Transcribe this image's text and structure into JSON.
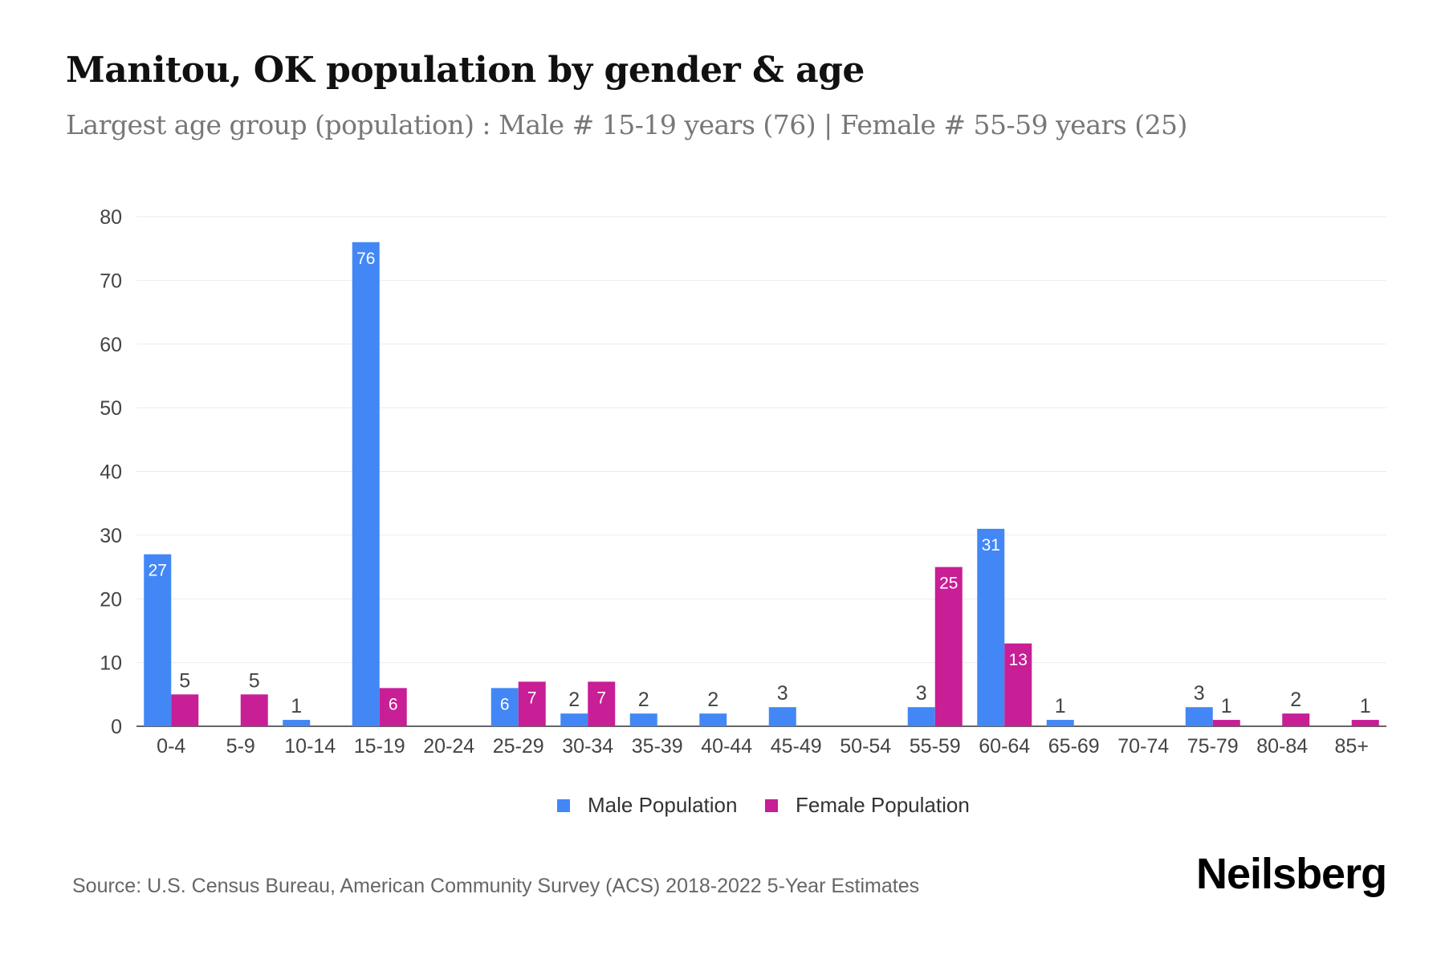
{
  "title": "Manitou, OK population by gender & age",
  "subtitle": "Largest age group (population) : Male # 15-19 years (76) | Female # 55-59 years (25)",
  "source": "Source: U.S. Census Bureau, American Community Survey (ACS) 2018-2022 5-Year Estimates",
  "logo": "Neilsberg",
  "chart_data": {
    "type": "bar",
    "categories": [
      "0-4",
      "5-9",
      "10-14",
      "15-19",
      "20-24",
      "25-29",
      "30-34",
      "35-39",
      "40-44",
      "45-49",
      "50-54",
      "55-59",
      "60-64",
      "65-69",
      "70-74",
      "75-79",
      "80-84",
      "85+"
    ],
    "series": [
      {
        "name": "Male Population",
        "color": "#4287f5",
        "values": [
          27,
          0,
          1,
          76,
          0,
          6,
          2,
          2,
          2,
          3,
          0,
          3,
          31,
          1,
          0,
          3,
          0,
          0
        ]
      },
      {
        "name": "Female Population",
        "color": "#c81e96",
        "values": [
          5,
          5,
          0,
          6,
          0,
          7,
          7,
          0,
          0,
          0,
          0,
          25,
          13,
          0,
          0,
          1,
          2,
          1
        ]
      }
    ],
    "yticks": [
      0,
      10,
      20,
      30,
      40,
      50,
      60,
      70,
      80
    ],
    "ylim": [
      0,
      80
    ],
    "xlabel": "",
    "ylabel": "",
    "grid": true,
    "legend": "bottom-center"
  }
}
